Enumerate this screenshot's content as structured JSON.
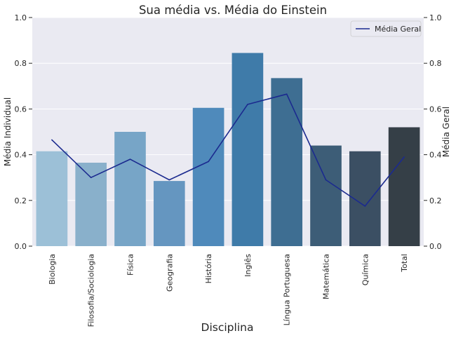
{
  "chart_data": {
    "type": "bar",
    "title": "Sua média vs. Média do Einstein",
    "xlabel": "Disciplina",
    "ylabel": "Média Individual",
    "ylabel_right": "Média Geral",
    "ylim": [
      0,
      1.0
    ],
    "ylim_right": [
      0,
      1.0
    ],
    "yticks": [
      "0.0",
      "0.2",
      "0.4",
      "0.6",
      "0.8",
      "1.0"
    ],
    "grid": true,
    "legend_position": "top-right",
    "categories": [
      "Biologia",
      "Filosofia/Sociologia",
      "Física",
      "Geografia",
      "História",
      "Inglês",
      "Língua Portuguesa",
      "Matemática",
      "Química",
      "Total"
    ],
    "series": [
      {
        "name": "Média Individual",
        "type": "bar",
        "values": [
          0.415,
          0.365,
          0.5,
          0.285,
          0.605,
          0.845,
          0.735,
          0.44,
          0.415,
          0.52
        ],
        "colors": [
          "#9cc0d7",
          "#89b0cb",
          "#77a5c7",
          "#6596c0",
          "#4f8abb",
          "#3f7ba9",
          "#3e6e92",
          "#3d5d77",
          "#3b4f63",
          "#353f47"
        ]
      },
      {
        "name": "Média Geral",
        "type": "line",
        "values": [
          0.465,
          0.3,
          0.38,
          0.29,
          0.37,
          0.62,
          0.665,
          0.29,
          0.175,
          0.39
        ],
        "color": "#1b2a8f"
      }
    ],
    "legend": [
      "Média Geral"
    ]
  }
}
